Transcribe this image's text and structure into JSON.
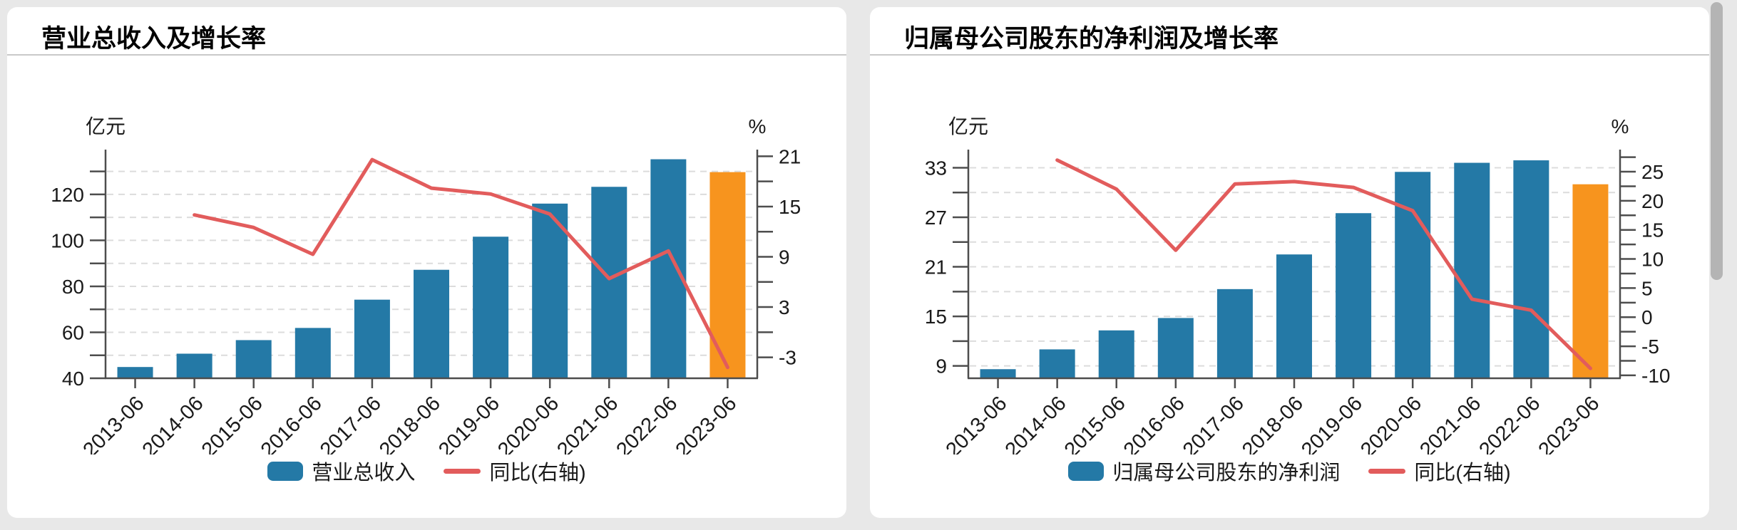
{
  "page": {
    "background_color": "#e8e8e8",
    "card_color": "#ffffff",
    "scrollbar_color": "#b4b4b4"
  },
  "chart_data": [
    {
      "type": "bar+line combo",
      "title": "营业总收入及增长率",
      "categories": [
        "2013-06",
        "2014-06",
        "2015-06",
        "2016-06",
        "2017-06",
        "2018-06",
        "2019-06",
        "2020-06",
        "2021-06",
        "2022-06",
        "2023-06"
      ],
      "series": [
        {
          "name": "营业总收入",
          "type": "bar",
          "axis": "left",
          "color": "#2479a6",
          "last_bar_color": "#f7941e",
          "values": [
            44.9,
            50.7,
            56.6,
            61.9,
            74.2,
            87.2,
            101.6,
            116.0,
            123.3,
            135.3,
            129.7
          ]
        },
        {
          "name": "同比(右轴)",
          "type": "line",
          "axis": "right",
          "color": "#e25c5c",
          "values": [
            null,
            14.0,
            12.5,
            9.3,
            20.6,
            17.2,
            16.5,
            14.1,
            6.4,
            9.7,
            -4.2
          ]
        }
      ],
      "left_axis": {
        "unit": "亿元",
        "min": 40,
        "max": 139.5,
        "tick_start": 40,
        "tick_step": 10,
        "label_step": 20,
        "tick_labels": [
          40,
          60,
          80,
          100,
          120
        ]
      },
      "right_axis": {
        "unit": "%",
        "min": -5.5,
        "max": 21.8,
        "tick_start": -3,
        "tick_step": 3,
        "label_step": 6,
        "tick_labels": [
          -3,
          3,
          9,
          15,
          21
        ]
      },
      "grid": "dashed horizontal at every left-axis tick",
      "legend_position": "bottom-center"
    },
    {
      "type": "bar+line combo",
      "title": "归属母公司股东的净利润及增长率",
      "categories": [
        "2013-06",
        "2014-06",
        "2015-06",
        "2016-06",
        "2017-06",
        "2018-06",
        "2019-06",
        "2020-06",
        "2021-06",
        "2022-06",
        "2023-06"
      ],
      "series": [
        {
          "name": "归属母公司股东的净利润",
          "type": "bar",
          "axis": "left",
          "color": "#2479a6",
          "last_bar_color": "#f7941e",
          "values": [
            8.6,
            11.0,
            13.3,
            14.8,
            18.3,
            22.5,
            27.5,
            32.5,
            33.6,
            33.9,
            31.0
          ]
        },
        {
          "name": "同比(右轴)",
          "type": "line",
          "axis": "right",
          "color": "#e25c5c",
          "values": [
            null,
            27.0,
            22.0,
            11.5,
            22.9,
            23.3,
            22.3,
            18.3,
            3.1,
            1.2,
            -8.8
          ]
        }
      ],
      "left_axis": {
        "unit": "亿元",
        "min": 7.5,
        "max": 35.2,
        "tick_start": 9,
        "tick_step": 3,
        "label_step": 6,
        "tick_labels": [
          9,
          15,
          21,
          27,
          33
        ]
      },
      "right_axis": {
        "unit": "%",
        "min": -10.5,
        "max": 28.8,
        "tick_start": -10,
        "tick_step": 2.5,
        "label_step": 5,
        "tick_labels": [
          -10,
          -5,
          0,
          5,
          10,
          15,
          20,
          25
        ]
      },
      "grid": "dashed horizontal at every left-axis tick",
      "legend_position": "bottom-center"
    }
  ]
}
